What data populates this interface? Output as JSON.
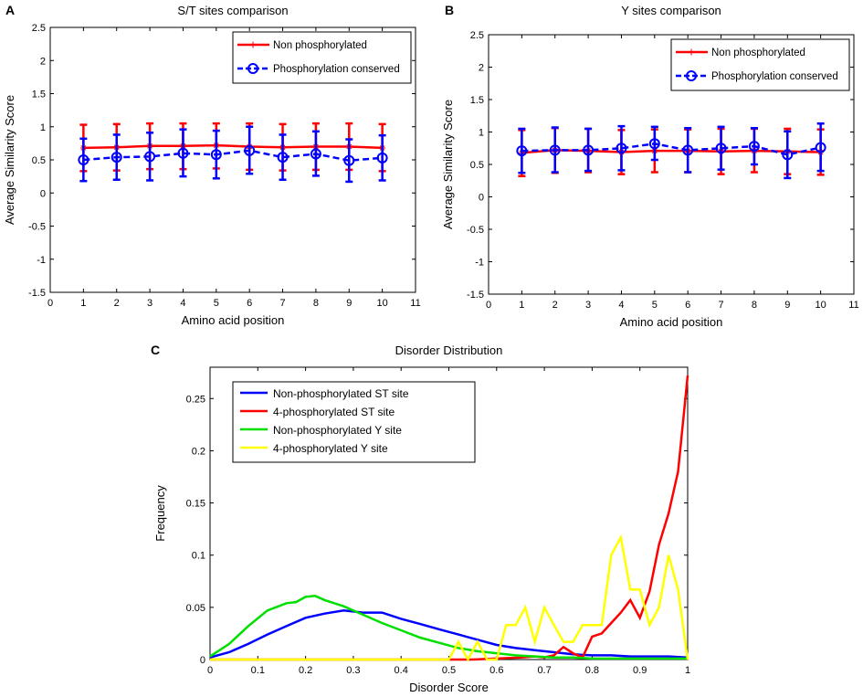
{
  "chart_data": [
    {
      "panel": "A",
      "type": "line",
      "title": "S/T sites comparison",
      "xlabel": "Amino acid position",
      "ylabel": "Average Similarity Score",
      "xlim": [
        0,
        11
      ],
      "ylim": [
        -1.5,
        2.5
      ],
      "xticks": [
        "0",
        "1",
        "2",
        "3",
        "4",
        "5",
        "6",
        "7",
        "8",
        "9",
        "10",
        "11"
      ],
      "yticks": [
        "-1.5",
        "-1",
        "-0.5",
        "0",
        "0.5",
        "1",
        "1.5",
        "2",
        "2.5"
      ],
      "legend_position": "top-right",
      "x": [
        1,
        2,
        3,
        4,
        5,
        6,
        7,
        8,
        9,
        10
      ],
      "series": [
        {
          "name": "Non phosphorylated",
          "color": "#ff0000",
          "style": "solid",
          "marker": "star",
          "values": [
            0.68,
            0.69,
            0.71,
            0.71,
            0.72,
            0.7,
            0.69,
            0.7,
            0.7,
            0.68
          ],
          "lower": [
            0.33,
            0.34,
            0.36,
            0.36,
            0.37,
            0.35,
            0.34,
            0.35,
            0.35,
            0.33
          ],
          "upper": [
            1.03,
            1.04,
            1.05,
            1.05,
            1.05,
            1.05,
            1.04,
            1.05,
            1.05,
            1.04
          ]
        },
        {
          "name": "Phosphorylation conserved",
          "color": "#0000ff",
          "style": "dashed",
          "marker": "circle",
          "values": [
            0.5,
            0.54,
            0.55,
            0.6,
            0.58,
            0.64,
            0.54,
            0.59,
            0.49,
            0.53
          ],
          "lower": [
            0.18,
            0.2,
            0.19,
            0.25,
            0.22,
            0.29,
            0.2,
            0.26,
            0.17,
            0.19
          ],
          "upper": [
            0.82,
            0.88,
            0.91,
            0.96,
            0.94,
            1.0,
            0.88,
            0.93,
            0.81,
            0.87
          ]
        }
      ]
    },
    {
      "panel": "B",
      "type": "line",
      "title": "Y sites comparison",
      "xlabel": "Amino acid position",
      "ylabel": "Average Similarity Score",
      "xlim": [
        0,
        11
      ],
      "ylim": [
        -1.5,
        2.5
      ],
      "xticks": [
        "0",
        "1",
        "2",
        "3",
        "4",
        "5",
        "6",
        "7",
        "8",
        "9",
        "10",
        "11"
      ],
      "yticks": [
        "-1.5",
        "-1",
        "-0.5",
        "0",
        "0.5",
        "1",
        "1.5",
        "2",
        "2.5"
      ],
      "legend_position": "top-right",
      "x": [
        1,
        2,
        3,
        4,
        5,
        6,
        7,
        8,
        9,
        10
      ],
      "series": [
        {
          "name": "Non phosphorylated",
          "color": "#ff0000",
          "style": "solid",
          "marker": "star",
          "values": [
            0.68,
            0.72,
            0.71,
            0.69,
            0.71,
            0.71,
            0.7,
            0.71,
            0.7,
            0.69
          ],
          "lower": [
            0.32,
            0.37,
            0.38,
            0.35,
            0.38,
            0.38,
            0.35,
            0.38,
            0.35,
            0.34
          ],
          "upper": [
            1.03,
            1.06,
            1.05,
            1.03,
            1.04,
            1.04,
            1.05,
            1.05,
            1.05,
            1.04
          ]
        },
        {
          "name": "Phosphorylation conserved",
          "color": "#0000ff",
          "style": "dashed",
          "marker": "circle",
          "values": [
            0.71,
            0.72,
            0.72,
            0.75,
            0.82,
            0.72,
            0.75,
            0.78,
            0.65,
            0.76
          ],
          "lower": [
            0.37,
            0.38,
            0.4,
            0.41,
            0.57,
            0.38,
            0.42,
            0.5,
            0.29,
            0.4
          ],
          "upper": [
            1.05,
            1.07,
            1.05,
            1.09,
            1.08,
            1.06,
            1.08,
            1.06,
            1.01,
            1.13
          ]
        }
      ]
    },
    {
      "panel": "C",
      "type": "line",
      "title": "Disorder Distribution",
      "xlabel": "Disorder Score",
      "ylabel": "Frequency",
      "xlim": [
        0,
        1
      ],
      "ylim": [
        0,
        0.28
      ],
      "xticks": [
        "0",
        "0.1",
        "0.2",
        "0.3",
        "0.4",
        "0.5",
        "0.6",
        "0.7",
        "0.8",
        "0.9",
        "1"
      ],
      "yticks": [
        "0",
        "0.05",
        "0.1",
        "0.15",
        "0.2",
        "0.25"
      ],
      "legend_position": "top-left",
      "series": [
        {
          "name": "Non-phosphorylated ST site",
          "color": "#0000ff",
          "x": [
            0,
            0.04,
            0.08,
            0.12,
            0.16,
            0.2,
            0.24,
            0.28,
            0.32,
            0.36,
            0.4,
            0.44,
            0.48,
            0.52,
            0.56,
            0.6,
            0.64,
            0.68,
            0.72,
            0.76,
            0.8,
            0.84,
            0.88,
            0.92,
            0.96,
            1.0
          ],
          "values": [
            0.002,
            0.007,
            0.015,
            0.024,
            0.032,
            0.04,
            0.044,
            0.047,
            0.045,
            0.045,
            0.039,
            0.034,
            0.029,
            0.024,
            0.019,
            0.014,
            0.011,
            0.009,
            0.007,
            0.005,
            0.004,
            0.004,
            0.003,
            0.003,
            0.003,
            0.002
          ]
        },
        {
          "name": "4-phosphorylated ST site",
          "color": "#ff0000",
          "x": [
            0,
            0.55,
            0.6,
            0.65,
            0.68,
            0.7,
            0.72,
            0.74,
            0.76,
            0.78,
            0.8,
            0.82,
            0.84,
            0.86,
            0.88,
            0.9,
            0.92,
            0.94,
            0.96,
            0.98,
            1.0
          ],
          "values": [
            0,
            0,
            0.001,
            0.002,
            0.003,
            0.002,
            0.004,
            0.012,
            0.006,
            0.002,
            0.022,
            0.025,
            0.035,
            0.045,
            0.057,
            0.04,
            0.065,
            0.11,
            0.14,
            0.18,
            0.272
          ]
        },
        {
          "name": "Non-phosphorylated Y site",
          "color": "#00e000",
          "x": [
            0,
            0.04,
            0.08,
            0.12,
            0.16,
            0.18,
            0.2,
            0.22,
            0.24,
            0.28,
            0.32,
            0.36,
            0.4,
            0.44,
            0.48,
            0.52,
            0.56,
            0.6,
            0.64,
            0.68,
            0.72,
            0.76,
            0.8,
            0.84,
            0.88,
            0.92,
            0.96,
            1.0
          ],
          "values": [
            0.003,
            0.015,
            0.032,
            0.047,
            0.054,
            0.055,
            0.06,
            0.061,
            0.057,
            0.051,
            0.043,
            0.035,
            0.028,
            0.021,
            0.016,
            0.011,
            0.008,
            0.006,
            0.004,
            0.003,
            0.002,
            0.002,
            0.001,
            0.001,
            0.001,
            0.001,
            0.001,
            0.001
          ]
        },
        {
          "name": "4-phosphorylated Y site",
          "color": "#ffff00",
          "x": [
            0,
            0.5,
            0.52,
            0.54,
            0.56,
            0.58,
            0.6,
            0.62,
            0.64,
            0.66,
            0.68,
            0.7,
            0.72,
            0.74,
            0.76,
            0.78,
            0.8,
            0.82,
            0.84,
            0.86,
            0.88,
            0.9,
            0.92,
            0.94,
            0.96,
            0.98,
            1.0
          ],
          "values": [
            0,
            0,
            0.017,
            0,
            0.017,
            0,
            0,
            0.033,
            0.033,
            0.05,
            0.017,
            0.05,
            0.033,
            0.017,
            0.017,
            0.033,
            0.033,
            0.033,
            0.1,
            0.117,
            0.067,
            0.067,
            0.033,
            0.05,
            0.1,
            0.067,
            0
          ]
        }
      ]
    }
  ]
}
